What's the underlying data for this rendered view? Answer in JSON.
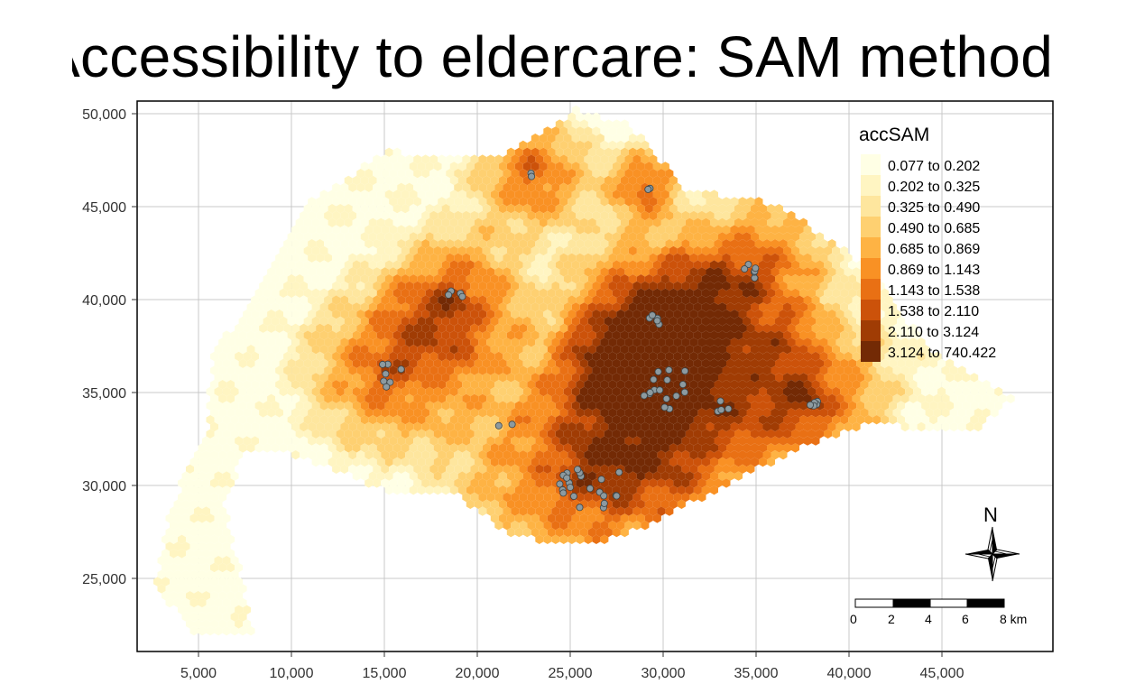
{
  "title": "Accessibility to eldercare: SAM method",
  "x_axis": {
    "ticks": [
      "5,000",
      "10,000",
      "15,000",
      "20,000",
      "25,000",
      "30,000",
      "35,000",
      "40,000",
      "45,000"
    ],
    "values": [
      5000,
      10000,
      15000,
      20000,
      25000,
      30000,
      35000,
      40000,
      45000
    ]
  },
  "y_axis": {
    "ticks": [
      "25,000",
      "30,000",
      "35,000",
      "40,000",
      "45,000",
      "50,000"
    ],
    "values": [
      25000,
      30000,
      35000,
      40000,
      45000,
      50000
    ]
  },
  "legend": {
    "title": "accSAM",
    "classes": [
      {
        "label": "0.077 to 0.202",
        "color": "#ffffe5"
      },
      {
        "label": "0.202 to 0.325",
        "color": "#fff5c2"
      },
      {
        "label": "0.325 to 0.490",
        "color": "#fee69e"
      },
      {
        "label": "0.490 to 0.685",
        "color": "#fed071"
      },
      {
        "label": "0.685 to 0.869",
        "color": "#feb344"
      },
      {
        "label": "0.869 to 1.143",
        "color": "#f99124"
      },
      {
        "label": "1.143 to 1.538",
        "color": "#e97014"
      },
      {
        "label": "1.538 to 2.110",
        "color": "#cc520a"
      },
      {
        "label": "2.110 to 3.124",
        "color": "#a03c04"
      },
      {
        "label": "3.124 to 740.422",
        "color": "#732a05"
      }
    ]
  },
  "north_arrow": {
    "label": "N"
  },
  "scale_bar": {
    "labels": [
      "0",
      "2",
      "4",
      "6",
      "8 km"
    ]
  },
  "eldercare_point_color": "#8c9aa0"
}
